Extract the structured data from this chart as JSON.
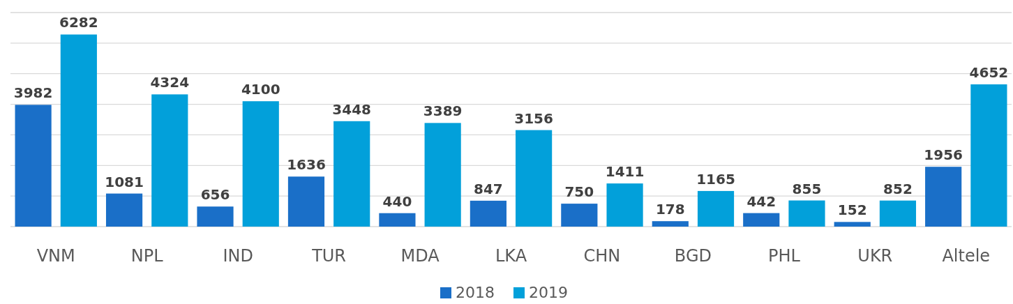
{
  "chart_data": {
    "type": "bar",
    "categories": [
      "VNM",
      "NPL",
      "IND",
      "TUR",
      "MDA",
      "LKA",
      "CHN",
      "BGD",
      "PHL",
      "UKR",
      "Altele"
    ],
    "series": [
      {
        "name": "2018",
        "color": "#1a6fc8",
        "values": [
          3982,
          1081,
          656,
          1636,
          440,
          847,
          750,
          178,
          442,
          152,
          1956
        ]
      },
      {
        "name": "2019",
        "color": "#02a0da",
        "values": [
          6282,
          4324,
          4100,
          3448,
          3389,
          3156,
          1411,
          1165,
          855,
          852,
          4652
        ]
      }
    ],
    "ylim": [
      0,
      7000
    ],
    "yticks": [
      {
        "value": 0,
        "label": null
      },
      {
        "value": 1000,
        "label": null
      },
      {
        "value": 2000,
        "label": null
      },
      {
        "value": 3000,
        "label": null
      },
      {
        "value": 4000,
        "label": null
      },
      {
        "value": 5000,
        "label": null
      },
      {
        "value": 6000,
        "label": null
      },
      {
        "value": 7000,
        "label": null
      }
    ],
    "tick_labels": "x",
    "grid": "y",
    "data_labels": true,
    "legend": "bottom"
  }
}
